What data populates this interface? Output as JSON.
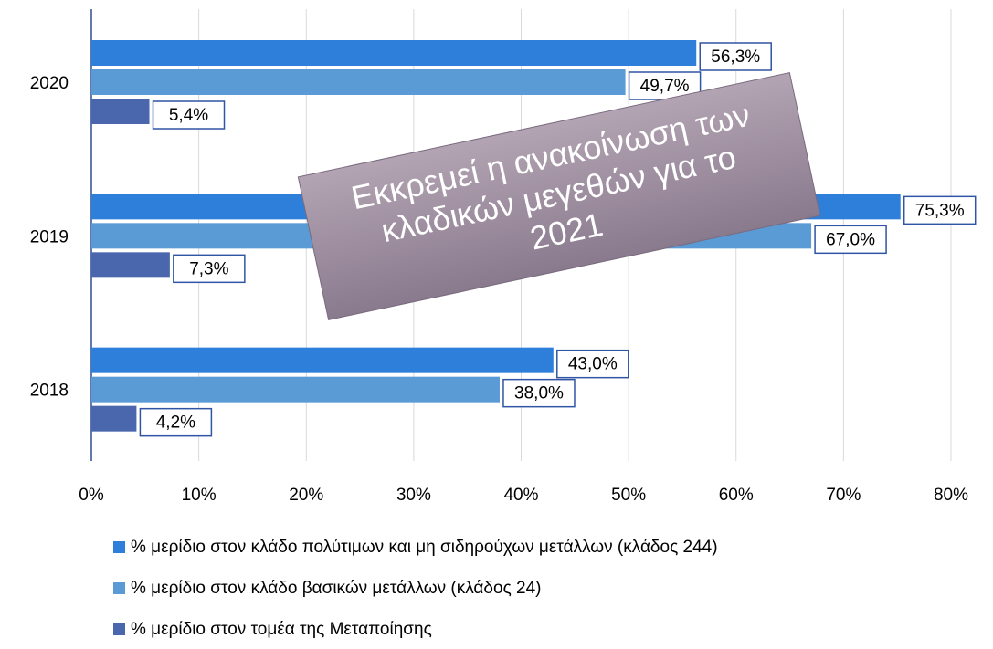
{
  "chart_data": {
    "type": "bar",
    "orientation": "horizontal",
    "categories": [
      "2020",
      "2019",
      "2018"
    ],
    "series": [
      {
        "name": "% μερίδιο στον κλάδο πολύτιμων και μη σιδηρούχων μετάλλων (κλάδος 244)",
        "color": "#2e7fd9",
        "values": [
          56.3,
          75.3,
          43.0
        ],
        "value_labels": [
          "56,3%",
          "75,3%",
          "43,0%"
        ]
      },
      {
        "name": "% μερίδιο στον κλάδο βασικών μετάλλων (κλάδος 24)",
        "color": "#5b9bd5",
        "values": [
          49.7,
          67.0,
          38.0
        ],
        "value_labels": [
          "49,7%",
          "67,0%",
          "38,0%"
        ]
      },
      {
        "name": "% μερίδιο στον τομέα της Μεταποίησης",
        "color": "#4a66ac",
        "values": [
          5.4,
          7.3,
          4.2
        ],
        "value_labels": [
          "5,4%",
          "7,3%",
          "4,2%"
        ]
      }
    ],
    "xlim": [
      0,
      80
    ],
    "xticks": [
      {
        "value": 0,
        "label": "0%"
      },
      {
        "value": 10,
        "label": "10%"
      },
      {
        "value": 20,
        "label": "20%"
      },
      {
        "value": 30,
        "label": "30%"
      },
      {
        "value": 40,
        "label": "40%"
      },
      {
        "value": 50,
        "label": "50%"
      },
      {
        "value": 60,
        "label": "60%"
      },
      {
        "value": 70,
        "label": "70%"
      },
      {
        "value": 80,
        "label": "80%"
      }
    ],
    "grid": true,
    "legend": "bottom",
    "annotation": [
      "Εκκρεμεί η ανακοίνωση των",
      "κλαδικών μεγεθών για το",
      "2021"
    ]
  }
}
